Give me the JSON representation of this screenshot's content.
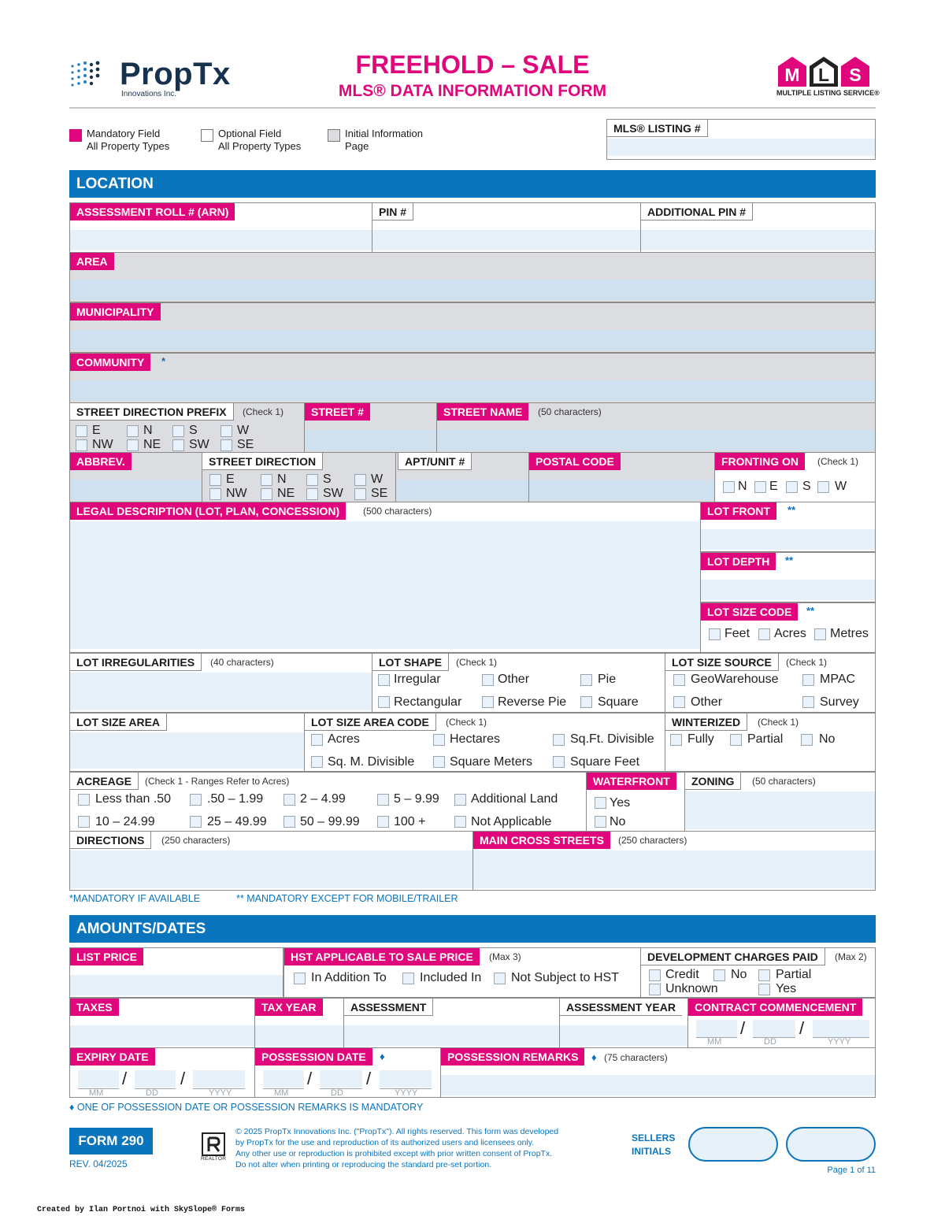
{
  "header": {
    "logo_name": "PropTx",
    "logo_sub": "Innovations Inc.",
    "title": "FREEHOLD – SALE",
    "subtitle": "MLS® DATA INFORMATION FORM",
    "mls_logo_letters": [
      "M",
      "L",
      "S"
    ],
    "mls_logo_caption": "MULTIPLE LISTING SERVICE®"
  },
  "legend": {
    "mandatory_1": "Mandatory Field",
    "mandatory_2": "All Property Types",
    "optional_1": "Optional Field",
    "optional_2": "All Property Types",
    "initial_1": "Initial Information",
    "initial_2": "Page",
    "mls_listing": "MLS® LISTING #"
  },
  "sections": {
    "location": "LOCATION",
    "amounts": "AMOUNTS/DATES"
  },
  "location": {
    "arn": "ASSESSMENT ROLL # (ARN)",
    "pin": "PIN #",
    "add_pin": "ADDITIONAL PIN #",
    "area": "AREA",
    "municipality": "MUNICIPALITY",
    "community": "COMMUNITY",
    "star": "*",
    "dstar": "**",
    "sdp": "STREET DIRECTION PREFIX",
    "check1": "(Check 1)",
    "street_no": "STREET #",
    "street_name": "STREET NAME",
    "chars50": "(50 characters)",
    "directions_set": [
      "E",
      "N",
      "S",
      "W",
      "NW",
      "NE",
      "SW",
      "SE"
    ],
    "abbrev": "ABBREV.",
    "street_dir": "STREET DIRECTION",
    "apt": "APT/UNIT #",
    "postal": "POSTAL CODE",
    "fronting": "FRONTING ON",
    "fronting_opts": [
      "N",
      "E",
      "S",
      "W"
    ],
    "legal": "LEGAL DESCRIPTION (LOT, PLAN, CONCESSION)",
    "chars500": "(500 characters)",
    "lot_front": "LOT FRONT",
    "lot_depth": "LOT DEPTH",
    "lot_size_code": "LOT SIZE CODE",
    "lsc_opts": [
      "Feet",
      "Acres",
      "Metres"
    ],
    "lot_irreg": "LOT IRREGULARITIES",
    "chars40": "(40 characters)",
    "lot_shape": "LOT SHAPE",
    "shape_opts": [
      "Irregular",
      "Other",
      "Pie",
      "Rectangular",
      "Reverse Pie",
      "Square"
    ],
    "lot_size_source": "LOT SIZE SOURCE",
    "source_opts": [
      "GeoWarehouse",
      "MPAC",
      "Other",
      "Survey"
    ],
    "lot_size_area": "LOT SIZE AREA",
    "lsac": "LOT SIZE AREA CODE",
    "lsac_opts": [
      "Acres",
      "Hectares",
      "Sq.Ft. Divisible",
      "Sq. M. Divisible",
      "Square Meters",
      "Square Feet"
    ],
    "winterized": "WINTERIZED",
    "wint_opts": [
      "Fully",
      "Partial",
      "No"
    ],
    "acreage": "ACREAGE",
    "acreage_note": "(Check 1 - Ranges Refer to Acres)",
    "acreage_opts": [
      "Less than .50",
      ".50 – 1.99",
      "2 – 4.99",
      "5 – 9.99",
      "Additional Land",
      "10 – 24.99",
      "25 – 49.99",
      "50 – 99.99",
      "100 +",
      "Not Applicable"
    ],
    "waterfront": "WATERFRONT",
    "wf_opts": [
      "Yes",
      "No"
    ],
    "zoning": "ZONING",
    "directions": "DIRECTIONS",
    "chars250": "(250 characters)",
    "main_cross": "MAIN CROSS STREETS",
    "footnote1": "*MANDATORY IF AVAILABLE",
    "footnote2": "** MANDATORY EXCEPT FOR MOBILE/TRAILER"
  },
  "amounts": {
    "list_price": "LIST PRICE",
    "hst": "HST APPLICABLE TO SALE PRICE",
    "max3": "(Max 3)",
    "hst_opts": [
      "In Addition To",
      "Included In",
      "Not Subject to HST"
    ],
    "dev": "DEVELOPMENT CHARGES PAID",
    "max2": "(Max 2)",
    "dev_opts": [
      "Credit",
      "No",
      "Partial",
      "Unknown",
      "Yes"
    ],
    "taxes": "TAXES",
    "tax_year": "TAX YEAR",
    "assessment": "ASSESSMENT",
    "assessment_year": "ASSESSMENT YEAR",
    "contract": "CONTRACT COMMENCEMENT",
    "expiry": "EXPIRY DATE",
    "possession": "POSSESSION DATE",
    "poss_remarks": "POSSESSION REMARKS",
    "diamond": "♦",
    "chars75": "(75 characters)",
    "date_parts": [
      "MM",
      "DD",
      "YYYY"
    ],
    "slash": "/",
    "poss_note": "♦ ONE OF POSSESSION DATE OR POSSESSION REMARKS IS MANDATORY"
  },
  "footer": {
    "form": "FORM 290",
    "rev": "REV. 04/2025",
    "realtor": "REALTOR",
    "copyright": [
      "© 2025 PropTx Innovations Inc. (\"PropTx\"). All rights reserved. This form was developed",
      "by PropTx for the use and reproduction of its authorized users and licensees only.",
      "Any other use or reproduction is prohibited except with prior written consent of PropTx.",
      "Do not alter when printing or reproducing the standard pre-set portion."
    ],
    "sellers_1": "SELLERS",
    "sellers_2": "INITIALS",
    "page": "Page 1 of 11",
    "created": "Created by Ilan Portnoi with SkySlope® Forms"
  },
  "colors": {
    "magenta": "#e0067c",
    "blue": "#0a74bd",
    "navy": "#17324f",
    "field": "#e7f1fa",
    "gray": "#dcdde1"
  }
}
